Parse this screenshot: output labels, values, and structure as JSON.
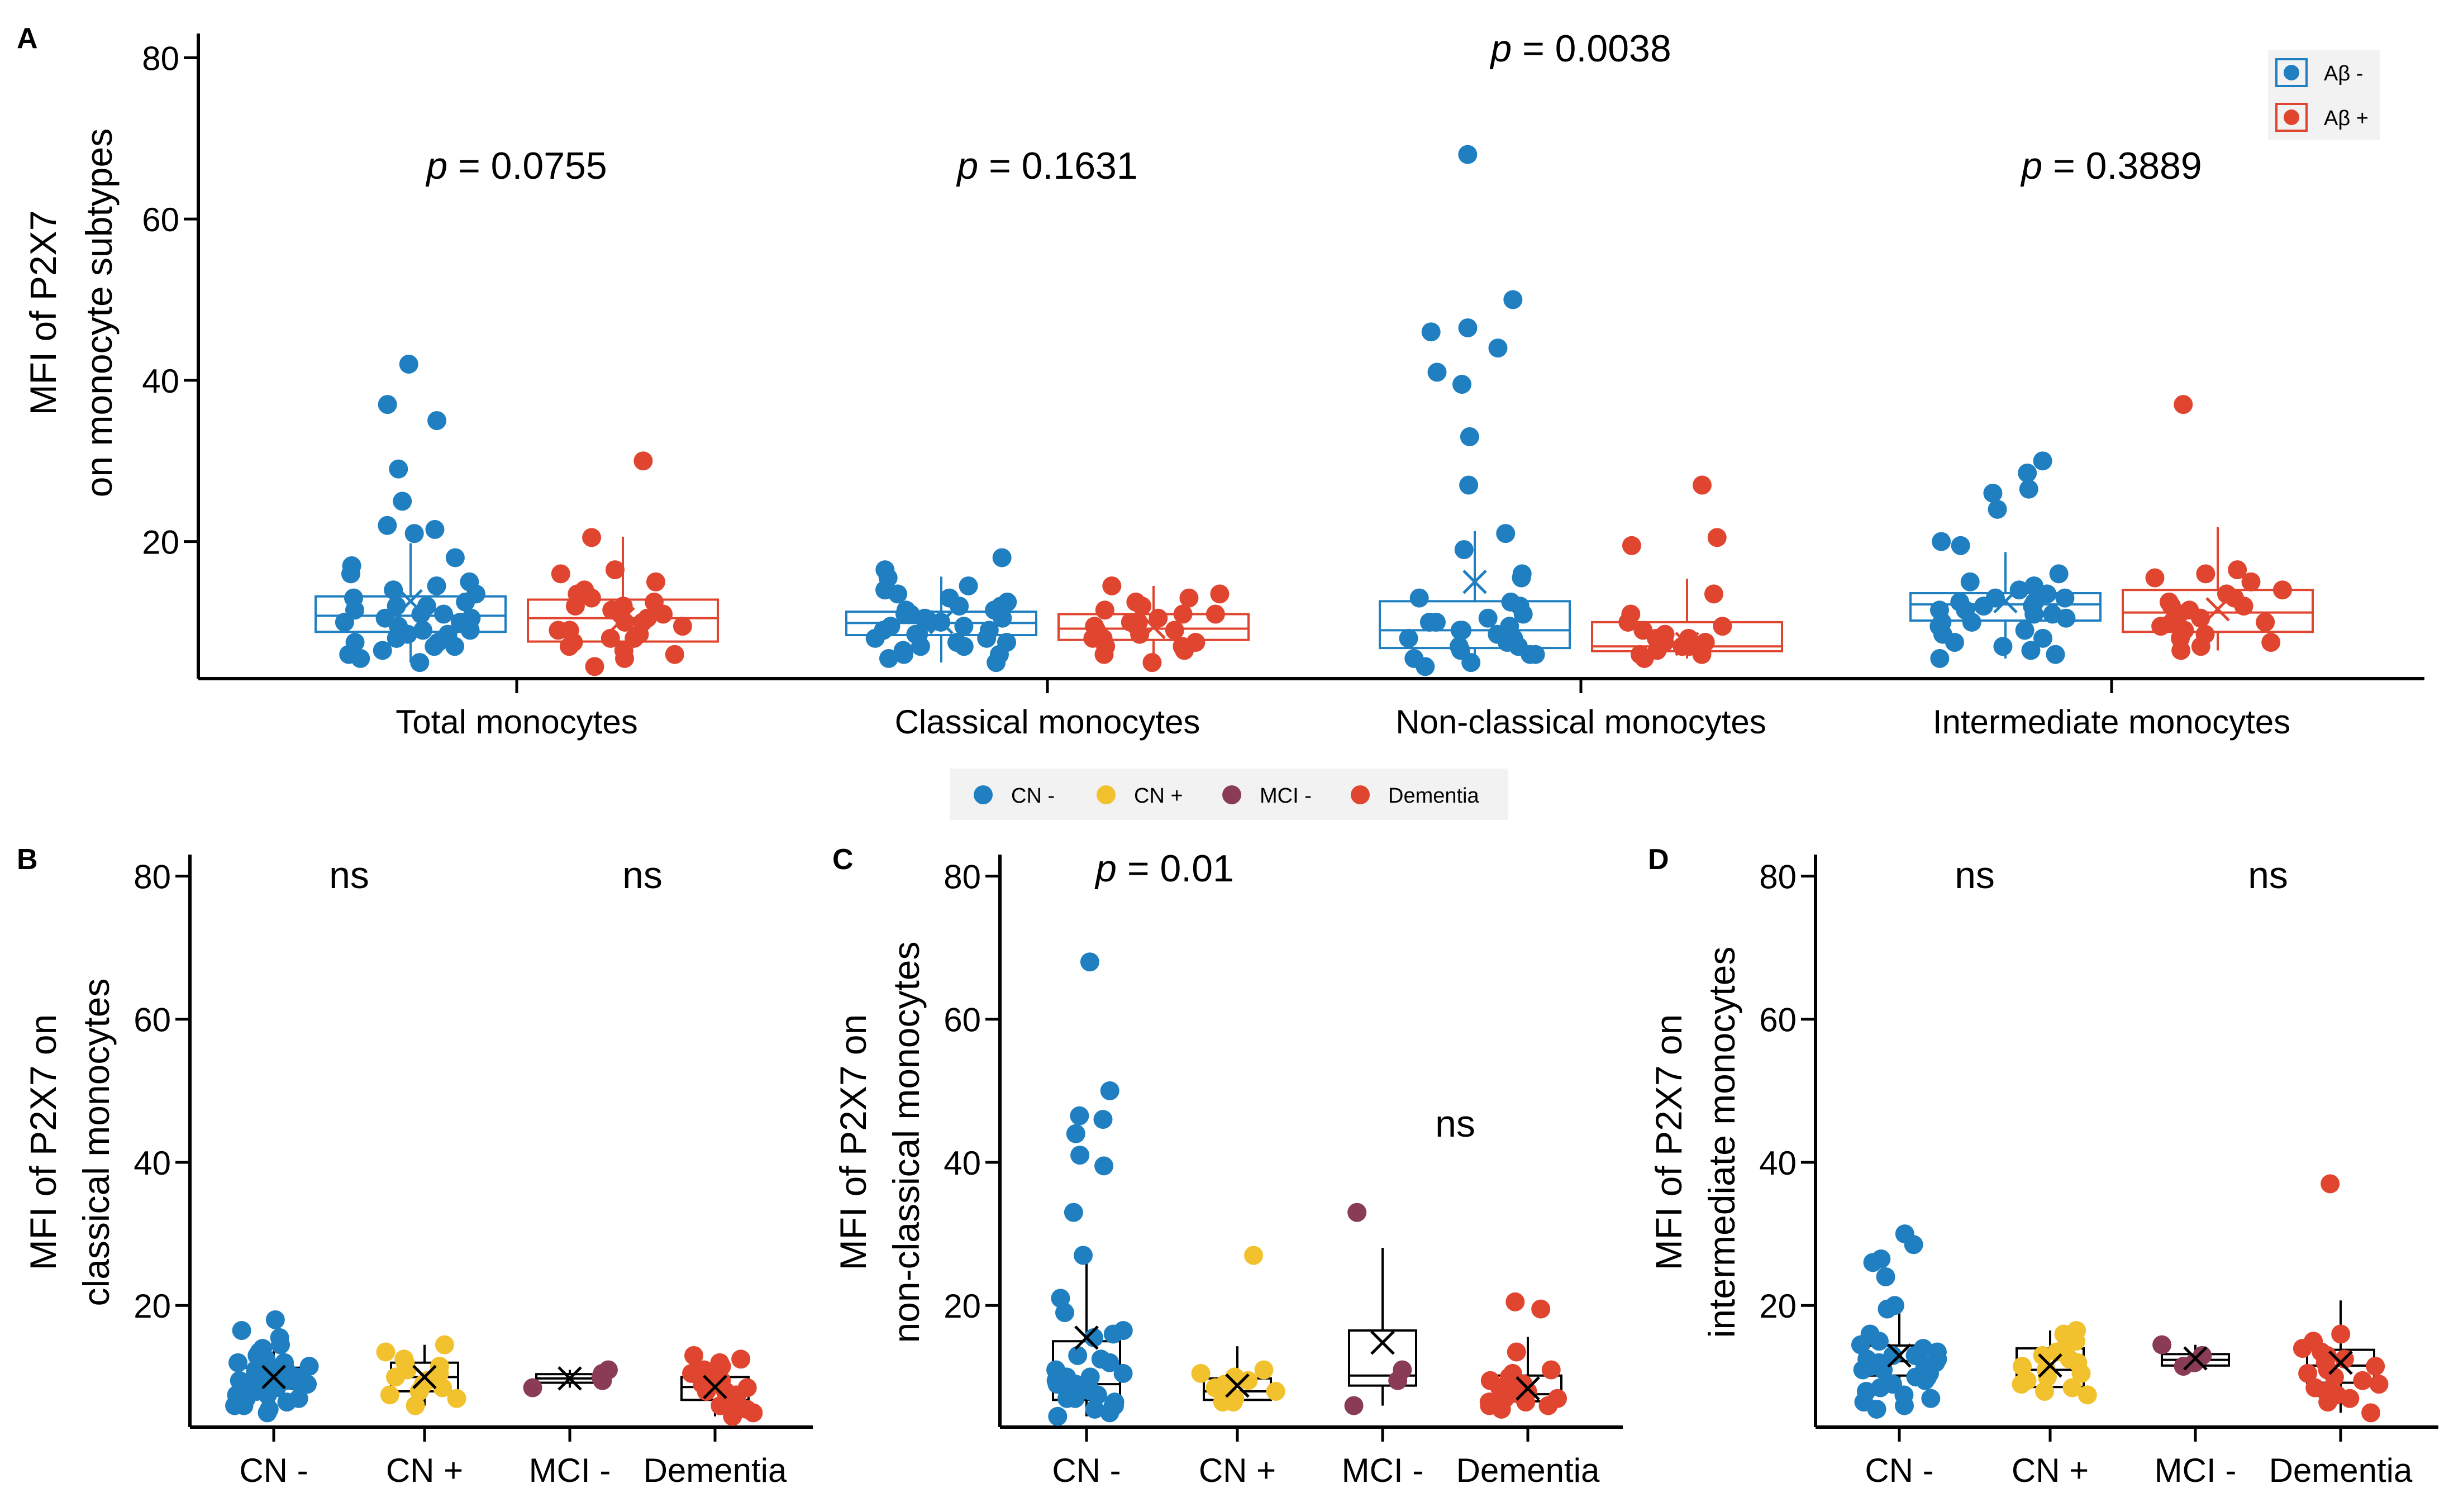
{
  "colors": {
    "cn_minus": "#1f7fc0",
    "cn_plus": "#f2c12e",
    "mci_minus": "#8a3b55",
    "dementia": "#e0452f",
    "abeta_minus": "#1f7fc0",
    "abeta_plus": "#e0452f"
  },
  "chart_data": [
    {
      "panel": "A",
      "type": "scatter",
      "ylabel_line1": "MFI of P2X7",
      "ylabel_line2": "on monocyte subtypes",
      "ylim": [
        0,
        80
      ],
      "yticks": [
        20,
        40,
        60,
        80
      ],
      "legend_position": "top-right",
      "legend": [
        {
          "key": "abeta_minus",
          "label": "Aβ -"
        },
        {
          "key": "abeta_plus",
          "label": "Aβ +"
        }
      ],
      "categories": [
        "Total monocytes",
        "Classical monocytes",
        "Non-classical monocytes",
        "Intermediate monocytes"
      ],
      "pvalues": [
        {
          "prefix": "p",
          "value": " = 0.0755"
        },
        {
          "prefix": "p",
          "value": " = 0.1631"
        },
        {
          "prefix": "p",
          "value": " = 0.0038"
        },
        {
          "prefix": "p",
          "value": " = 0.3889"
        }
      ],
      "groups": [
        {
          "category": 0,
          "series": "abeta_minus",
          "q1": 8.8,
          "median": 10.8,
          "q3": 13.2,
          "mean": 12.6,
          "points": [
            42,
            37,
            35,
            29,
            25,
            22,
            21.5,
            21,
            18,
            17,
            16,
            15,
            14.5,
            14,
            13.5,
            13,
            12.5,
            12,
            12,
            11.5,
            11,
            11,
            10.5,
            10.5,
            10,
            10,
            9.5,
            9.5,
            9,
            9,
            8.5,
            8.5,
            8,
            8,
            7.5,
            7.5,
            7,
            7,
            6.5,
            6,
            5.5,
            5
          ]
        },
        {
          "category": 0,
          "series": "abeta_plus",
          "q1": 7.6,
          "median": 10.5,
          "q3": 12.8,
          "mean": 10.4,
          "points": [
            30,
            20.5,
            16.5,
            16,
            15,
            14,
            13.5,
            13,
            12.5,
            12,
            12,
            11.5,
            11,
            11,
            10.5,
            10,
            10,
            9.5,
            9,
            9,
            8.5,
            8,
            8,
            7.5,
            7,
            6.5,
            6,
            5.5,
            4.5
          ]
        },
        {
          "category": 1,
          "series": "abeta_minus",
          "q1": 8.4,
          "median": 9.9,
          "q3": 11.3,
          "mean": 10.0,
          "points": [
            18,
            16.5,
            15.5,
            14.5,
            14,
            13.5,
            13,
            12.5,
            12,
            12,
            11.5,
            11.5,
            11,
            11,
            10.5,
            10.5,
            10,
            10,
            10,
            9.5,
            9.5,
            9,
            9,
            8.5,
            8.5,
            8,
            8,
            7.5,
            7.5,
            7,
            7,
            6.5,
            6,
            6,
            5.5,
            5
          ]
        },
        {
          "category": 1,
          "series": "abeta_plus",
          "q1": 7.8,
          "median": 9.2,
          "q3": 11.0,
          "mean": 9.4,
          "points": [
            14.5,
            13.5,
            13,
            12.5,
            12,
            11.5,
            11,
            11,
            10.5,
            10,
            10,
            9.5,
            9.5,
            9,
            9,
            8.5,
            8,
            8,
            7.5,
            7,
            7,
            6.5,
            6,
            5
          ]
        },
        {
          "category": 2,
          "series": "abeta_minus",
          "q1": 6.8,
          "median": 9.0,
          "q3": 12.6,
          "mean": 15.0,
          "points": [
            68,
            50,
            46.5,
            46,
            44,
            41,
            39.5,
            33,
            27,
            21,
            19,
            16,
            15.5,
            13,
            12.5,
            12,
            11,
            10.5,
            10,
            10,
            9.5,
            9,
            9,
            8.5,
            8,
            8,
            7.5,
            7,
            7,
            6.5,
            6,
            6,
            5.5,
            5,
            4.5
          ]
        },
        {
          "category": 2,
          "series": "abeta_plus",
          "q1": 6.4,
          "median": 7.0,
          "q3": 10.0,
          "mean": 7.3,
          "points": [
            27,
            20.5,
            19.5,
            13.5,
            11,
            10,
            9.5,
            9,
            8.5,
            8,
            8,
            7.5,
            7.5,
            7,
            7,
            6.5,
            6.5,
            6,
            6,
            5.5
          ]
        },
        {
          "category": 3,
          "series": "abeta_minus",
          "q1": 10.2,
          "median": 12.2,
          "q3": 13.6,
          "mean": 12.6,
          "points": [
            30,
            28.5,
            26.5,
            26,
            24,
            20,
            19.5,
            16,
            15,
            14.5,
            14,
            13.5,
            13,
            13,
            12.5,
            12.5,
            12,
            12,
            11.5,
            11.5,
            11,
            11,
            10.5,
            10,
            10,
            9.5,
            9,
            8.5,
            8,
            7.5,
            7,
            6.5,
            6,
            5.5
          ]
        },
        {
          "category": 3,
          "series": "abeta_plus",
          "q1": 8.8,
          "median": 11.2,
          "q3": 14.0,
          "mean": 11.6,
          "points": [
            37,
            16.5,
            16,
            15.5,
            15,
            14,
            13.5,
            13,
            12.5,
            12,
            12,
            11.5,
            11,
            10.5,
            10,
            10,
            9.5,
            9,
            8.5,
            8,
            7.5,
            7,
            6.5
          ]
        }
      ]
    },
    {
      "panel": "B",
      "type": "scatter",
      "ylabel_line1": "MFI of P2X7 on",
      "ylabel_line2": "classical monocytes",
      "ylim": [
        0,
        80
      ],
      "yticks": [
        20,
        40,
        60,
        80
      ],
      "categories": [
        "CN -",
        "CN +",
        "MCI -",
        "Dementia"
      ],
      "annotations": [
        {
          "text": "ns",
          "position": "above CN + / CN -"
        },
        {
          "text": "ns",
          "position": "above Dementia / MCI -"
        }
      ],
      "groups": [
        {
          "category": 0,
          "series": "cn_minus",
          "q1": 8.4,
          "median": 9.9,
          "q3": 11.3,
          "mean": 10.0,
          "points": [
            18,
            16.5,
            15.5,
            14.5,
            14,
            13.5,
            13,
            12.5,
            12,
            12,
            11.5,
            11.5,
            11,
            11,
            10.5,
            10.5,
            10,
            10,
            10,
            9.5,
            9.5,
            9,
            9,
            8.5,
            8.5,
            8,
            8,
            7.5,
            7.5,
            7,
            7,
            6.5,
            6,
            6,
            5.5,
            5
          ]
        },
        {
          "category": 1,
          "series": "cn_plus",
          "q1": 8.0,
          "median": 10.0,
          "q3": 12.0,
          "mean": 10.0,
          "points": [
            14.5,
            13.5,
            12.5,
            12,
            11.5,
            11,
            10.5,
            10,
            9.5,
            9,
            8.5,
            8,
            7.5,
            7,
            6
          ]
        },
        {
          "category": 2,
          "series": "mci_minus",
          "q1": 9.2,
          "median": 9.8,
          "q3": 10.4,
          "mean": 9.8,
          "points": [
            11,
            10.5,
            10,
            9.5,
            8.5
          ]
        },
        {
          "category": 3,
          "series": "dementia",
          "q1": 6.8,
          "median": 8.6,
          "q3": 10.0,
          "mean": 8.6,
          "points": [
            13,
            12.5,
            12,
            11.5,
            11,
            10.5,
            10,
            9.5,
            9,
            9,
            8.5,
            8,
            8,
            7.5,
            7,
            6.5,
            6,
            5.5,
            5,
            4.5
          ]
        }
      ]
    },
    {
      "panel": "C",
      "type": "scatter",
      "ylabel_line1": "MFI of P2X7 on",
      "ylabel_line2": "non-classical monocytes",
      "ylim": [
        0,
        80
      ],
      "yticks": [
        20,
        40,
        60,
        80
      ],
      "categories": [
        "CN -",
        "CN +",
        "MCI -",
        "Dementia"
      ],
      "annotations": [
        {
          "text": "p",
          "suffix": " = 0.01",
          "position": "above CN -"
        },
        {
          "text": "ns",
          "position": "above MCI - / Dementia"
        }
      ],
      "groups": [
        {
          "category": 0,
          "series": "cn_minus",
          "q1": 6.8,
          "median": 9.0,
          "q3": 15.0,
          "mean": 15.5,
          "points": [
            68,
            50,
            46.5,
            46,
            44,
            41,
            39.5,
            33,
            27,
            21,
            19,
            16.5,
            16,
            15.5,
            13,
            12.5,
            12,
            11,
            10.5,
            10,
            10,
            9.5,
            9,
            9,
            8.5,
            8,
            8,
            7.5,
            7,
            7,
            6.5,
            6,
            6,
            5.5,
            5,
            4.5
          ]
        },
        {
          "category": 1,
          "series": "cn_plus",
          "q1": 6.8,
          "median": 8.0,
          "q3": 9.8,
          "mean": 8.8,
          "points": [
            27,
            11,
            10.5,
            10,
            9.5,
            9,
            8.5,
            8,
            7.5,
            7,
            6.5,
            6.5
          ]
        },
        {
          "category": 2,
          "series": "mci_minus",
          "q1": 8.8,
          "median": 10.2,
          "q3": 16.5,
          "mean": 14.8,
          "points": [
            33,
            11,
            9.5,
            6
          ]
        },
        {
          "category": 3,
          "series": "dementia",
          "q1": 6.6,
          "median": 7.6,
          "q3": 10.2,
          "mean": 8.4,
          "points": [
            20.5,
            19.5,
            13.5,
            11,
            10.5,
            10,
            9.5,
            9,
            8.5,
            8,
            8,
            7.5,
            7,
            7,
            6.5,
            6.5,
            6,
            6,
            5.5
          ]
        }
      ]
    },
    {
      "panel": "D",
      "type": "scatter",
      "ylabel_line1": "MFI of P2X7 on",
      "ylabel_line2": "intermediate monocytes",
      "ylim": [
        0,
        80
      ],
      "yticks": [
        20,
        40,
        60,
        80
      ],
      "categories": [
        "CN -",
        "CN +",
        "MCI -",
        "Dementia"
      ],
      "annotations": [
        {
          "text": "ns",
          "position": "above CN + / CN -"
        },
        {
          "text": "ns",
          "position": "above Dementia / MCI -"
        }
      ],
      "groups": [
        {
          "category": 0,
          "series": "cn_minus",
          "q1": 10.2,
          "median": 12.2,
          "q3": 14.4,
          "mean": 13.0,
          "points": [
            30,
            28.5,
            26.5,
            26,
            24,
            20,
            19.5,
            16,
            15,
            14.5,
            14,
            13.5,
            13,
            13,
            12.5,
            12.5,
            12,
            12,
            11.5,
            11.5,
            11,
            11,
            10.5,
            10,
            10,
            9.5,
            9,
            8.5,
            8,
            7.5,
            7,
            6.5,
            6,
            5.5
          ]
        },
        {
          "category": 1,
          "series": "cn_plus",
          "q1": 8.6,
          "median": 11.0,
          "q3": 14.0,
          "mean": 11.6,
          "points": [
            16.5,
            16,
            15,
            14,
            13.5,
            13,
            12.5,
            12,
            11.5,
            11,
            10.5,
            10,
            9.5,
            9,
            8.5,
            8,
            7.5
          ]
        },
        {
          "category": 2,
          "series": "mci_minus",
          "q1": 11.6,
          "median": 12.4,
          "q3": 13.2,
          "mean": 12.6,
          "points": [
            14.5,
            13,
            12,
            11.5
          ]
        },
        {
          "category": 3,
          "series": "dementia",
          "q1": 9.2,
          "median": 11.6,
          "q3": 13.8,
          "mean": 12.0,
          "points": [
            37,
            16,
            15,
            14,
            13.5,
            13,
            12.5,
            12,
            11.5,
            11,
            10.5,
            10,
            9.5,
            9,
            8.5,
            8,
            7.5,
            7,
            6.5,
            5
          ]
        }
      ]
    }
  ],
  "group_legend": [
    {
      "key": "cn_minus",
      "label": "CN -"
    },
    {
      "key": "cn_plus",
      "label": "CN +"
    },
    {
      "key": "mci_minus",
      "label": "MCI -"
    },
    {
      "key": "dementia",
      "label": "Dementia"
    }
  ]
}
